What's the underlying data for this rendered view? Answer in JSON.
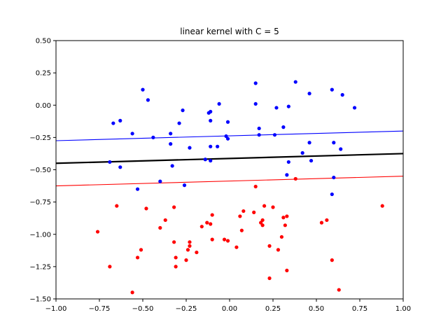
{
  "chart_data": {
    "type": "scatter",
    "title": "linear kernel with C = 5",
    "xlabel": "",
    "ylabel": "",
    "xlim": [
      -1.0,
      1.0
    ],
    "ylim": [
      -1.5,
      0.5
    ],
    "grid": false,
    "x_ticks": [
      -1.0,
      -0.75,
      -0.5,
      -0.25,
      0.0,
      0.25,
      0.5,
      0.75,
      1.0
    ],
    "x_tick_labels": [
      "−1.00",
      "−0.75",
      "−0.50",
      "−0.25",
      "0.00",
      "0.25",
      "0.50",
      "0.75",
      "1.00"
    ],
    "y_ticks": [
      -1.5,
      -1.25,
      -1.0,
      -0.75,
      -0.5,
      -0.25,
      0.0,
      0.25,
      0.5
    ],
    "y_tick_labels": [
      "−1.50",
      "−1.25",
      "−1.00",
      "−0.75",
      "−0.50",
      "−0.25",
      "0.00",
      "0.25",
      "0.50"
    ],
    "lines": [
      {
        "color": "#0000ff",
        "x": [
          -1.0,
          1.0
        ],
        "y": [
          -0.275,
          -0.2
        ]
      },
      {
        "color": "#000000",
        "x": [
          -1.0,
          1.0
        ],
        "y": [
          -0.45,
          -0.375
        ]
      },
      {
        "color": "#ff0000",
        "x": [
          -1.0,
          1.0
        ],
        "y": [
          -0.625,
          -0.55
        ]
      }
    ],
    "series": [
      {
        "color": "#0000ff",
        "points": [
          [
            -0.5,
            0.12
          ],
          [
            -0.47,
            0.04
          ],
          [
            -0.63,
            -0.12
          ],
          [
            -0.67,
            -0.14
          ],
          [
            -0.56,
            -0.22
          ],
          [
            -0.44,
            -0.25
          ],
          [
            -0.34,
            -0.22
          ],
          [
            -0.34,
            -0.3
          ],
          [
            -0.29,
            -0.14
          ],
          [
            -0.27,
            -0.04
          ],
          [
            -0.23,
            -0.33
          ],
          [
            -0.33,
            -0.47
          ],
          [
            -0.4,
            -0.59
          ],
          [
            -0.26,
            -0.62
          ],
          [
            -0.53,
            -0.65
          ],
          [
            -0.69,
            -0.44
          ],
          [
            -0.63,
            -0.48
          ],
          [
            -0.12,
            -0.06
          ],
          [
            -0.11,
            -0.05
          ],
          [
            -0.11,
            -0.12
          ],
          [
            -0.06,
            0.01
          ],
          [
            -0.01,
            -0.13
          ],
          [
            -0.07,
            -0.32
          ],
          [
            -0.11,
            -0.32
          ],
          [
            -0.14,
            -0.42
          ],
          [
            -0.11,
            -0.43
          ],
          [
            -0.02,
            -0.24
          ],
          [
            -0.01,
            -0.26
          ],
          [
            0.15,
            0.17
          ],
          [
            0.15,
            0.01
          ],
          [
            0.17,
            -0.18
          ],
          [
            0.17,
            -0.23
          ],
          [
            0.27,
            -0.02
          ],
          [
            0.26,
            -0.23
          ],
          [
            0.31,
            -0.17
          ],
          [
            0.34,
            -0.01
          ],
          [
            0.38,
            0.18
          ],
          [
            0.46,
            0.09
          ],
          [
            0.59,
            0.12
          ],
          [
            0.65,
            0.08
          ],
          [
            0.72,
            -0.02
          ],
          [
            0.6,
            -0.29
          ],
          [
            0.64,
            -0.34
          ],
          [
            0.46,
            -0.29
          ],
          [
            0.42,
            -0.37
          ],
          [
            0.47,
            -0.43
          ],
          [
            0.34,
            -0.44
          ],
          [
            0.33,
            -0.54
          ],
          [
            0.6,
            -0.56
          ],
          [
            0.59,
            -0.69
          ]
        ]
      },
      {
        "color": "#ff0000",
        "points": [
          [
            -0.76,
            -0.98
          ],
          [
            -0.69,
            -1.25
          ],
          [
            -0.65,
            -0.78
          ],
          [
            -0.48,
            -0.8
          ],
          [
            -0.4,
            -0.95
          ],
          [
            -0.37,
            -0.89
          ],
          [
            -0.32,
            -0.79
          ],
          [
            -0.32,
            -1.06
          ],
          [
            -0.31,
            -1.18
          ],
          [
            -0.31,
            -1.25
          ],
          [
            -0.25,
            -1.2
          ],
          [
            -0.24,
            -1.12
          ],
          [
            -0.23,
            -1.09
          ],
          [
            -0.23,
            -1.06
          ],
          [
            -0.19,
            -1.14
          ],
          [
            -0.16,
            -0.94
          ],
          [
            -0.13,
            -0.91
          ],
          [
            -0.11,
            -0.92
          ],
          [
            -0.1,
            -0.85
          ],
          [
            -0.1,
            -1.04
          ],
          [
            -0.03,
            -1.04
          ],
          [
            -0.01,
            -1.05
          ],
          [
            0.04,
            -1.1
          ],
          [
            0.06,
            -0.86
          ],
          [
            0.08,
            -0.82
          ],
          [
            0.07,
            -0.97
          ],
          [
            0.14,
            -0.83
          ],
          [
            0.15,
            -0.63
          ],
          [
            0.18,
            -0.91
          ],
          [
            0.19,
            -0.89
          ],
          [
            0.19,
            -0.93
          ],
          [
            0.2,
            -0.78
          ],
          [
            0.23,
            -1.09
          ],
          [
            0.23,
            -1.34
          ],
          [
            0.25,
            -0.79
          ],
          [
            0.28,
            -1.12
          ],
          [
            0.3,
            -1.02
          ],
          [
            0.31,
            -0.87
          ],
          [
            0.32,
            -0.93
          ],
          [
            0.33,
            -0.86
          ],
          [
            0.33,
            -1.28
          ],
          [
            0.38,
            -0.57
          ],
          [
            0.53,
            -0.91
          ],
          [
            0.56,
            -0.89
          ],
          [
            0.59,
            -1.2
          ],
          [
            0.63,
            -1.43
          ],
          [
            0.88,
            -0.78
          ],
          [
            -0.53,
            -1.18
          ],
          [
            -0.51,
            -1.12
          ],
          [
            -0.56,
            -1.45
          ]
        ]
      }
    ]
  }
}
